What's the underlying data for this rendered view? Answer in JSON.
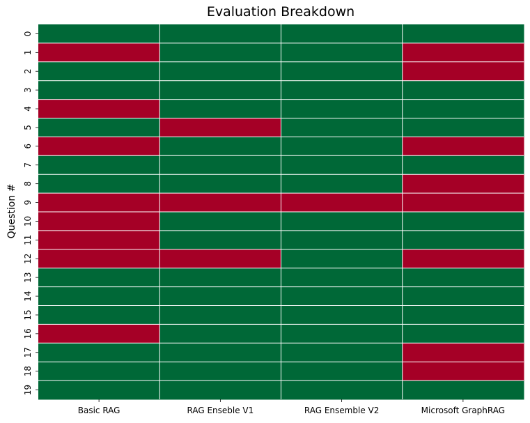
{
  "chart_data": {
    "type": "heatmap",
    "title": "Evaluation Breakdown",
    "xlabel": "",
    "ylabel": "Question #",
    "columns": [
      "Basic RAG",
      "RAG Enseble V1",
      "RAG Ensemble V2",
      "Microsoft GraphRAG"
    ],
    "rows": [
      "0",
      "1",
      "2",
      "3",
      "4",
      "5",
      "6",
      "7",
      "8",
      "9",
      "10",
      "11",
      "12",
      "13",
      "14",
      "15",
      "16",
      "17",
      "18",
      "19"
    ],
    "values": [
      [
        1,
        1,
        1,
        1
      ],
      [
        0,
        1,
        1,
        0
      ],
      [
        1,
        1,
        1,
        0
      ],
      [
        1,
        1,
        1,
        1
      ],
      [
        0,
        1,
        1,
        1
      ],
      [
        1,
        0,
        1,
        1
      ],
      [
        0,
        1,
        1,
        0
      ],
      [
        1,
        1,
        1,
        1
      ],
      [
        1,
        1,
        1,
        0
      ],
      [
        0,
        0,
        0,
        0
      ],
      [
        0,
        1,
        1,
        1
      ],
      [
        0,
        1,
        1,
        1
      ],
      [
        0,
        0,
        1,
        0
      ],
      [
        1,
        1,
        1,
        1
      ],
      [
        1,
        1,
        1,
        1
      ],
      [
        1,
        1,
        1,
        1
      ],
      [
        0,
        1,
        1,
        1
      ],
      [
        1,
        1,
        1,
        0
      ],
      [
        1,
        1,
        1,
        0
      ],
      [
        1,
        1,
        1,
        1
      ]
    ],
    "colors": {
      "1": "#006837",
      "0": "#a50026",
      "grid": "#ffffff"
    },
    "colorbar": false,
    "grid": true
  }
}
